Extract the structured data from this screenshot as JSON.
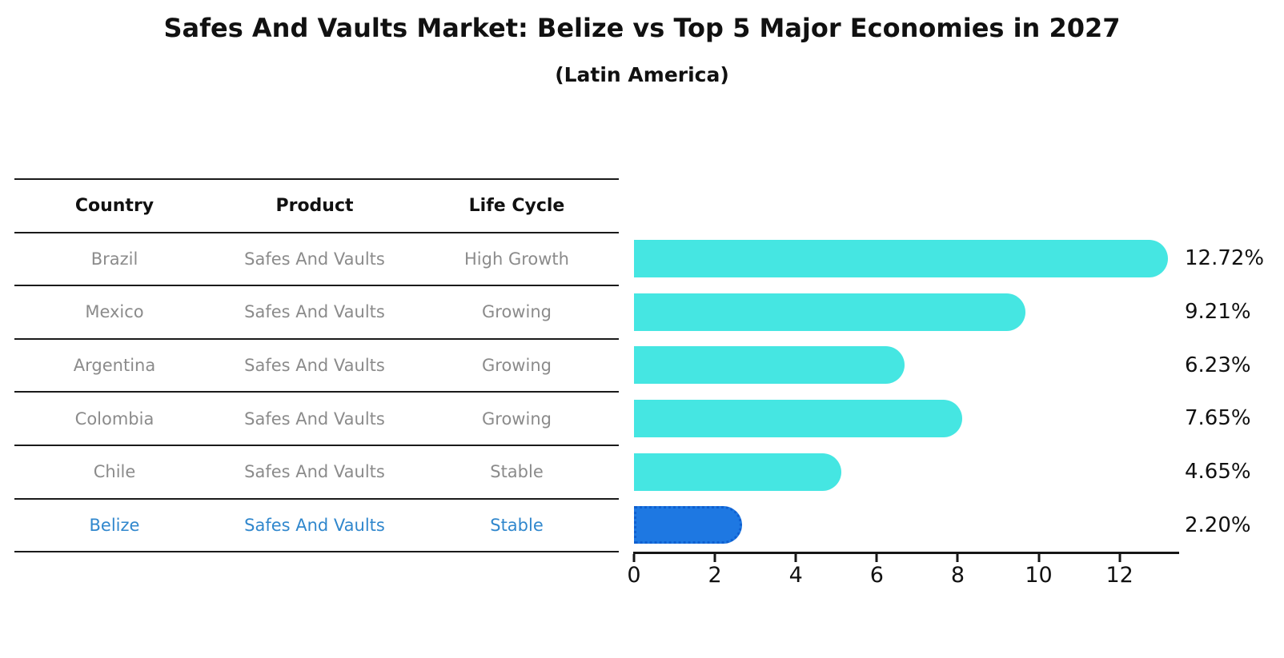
{
  "title": "Safes And Vaults Market: Belize vs Top 5 Major Economies in 2027",
  "subtitle": "(Latin America)",
  "table": {
    "headers": [
      "Country",
      "Product",
      "Life Cycle"
    ],
    "rows": [
      {
        "country": "Brazil",
        "product": "Safes And Vaults",
        "life_cycle": "High Growth",
        "highlight": false
      },
      {
        "country": "Mexico",
        "product": "Safes And Vaults",
        "life_cycle": "Growing",
        "highlight": false
      },
      {
        "country": "Argentina",
        "product": "Safes And Vaults",
        "life_cycle": "Growing",
        "highlight": false
      },
      {
        "country": "Colombia",
        "product": "Safes And Vaults",
        "life_cycle": "Growing",
        "highlight": false
      },
      {
        "country": "Chile",
        "product": "Safes And Vaults",
        "life_cycle": "Stable",
        "highlight": false
      },
      {
        "country": "Belize",
        "product": "Safes And Vaults",
        "life_cycle": "Stable",
        "highlight": true
      }
    ]
  },
  "chart_data": {
    "type": "bar",
    "orientation": "horizontal",
    "title": "Safes And Vaults Market: Belize vs Top 5 Major Economies in 2027",
    "subtitle": "(Latin America)",
    "categories": [
      "Brazil",
      "Mexico",
      "Argentina",
      "Colombia",
      "Chile",
      "Belize"
    ],
    "values": [
      12.72,
      9.21,
      6.23,
      7.65,
      4.65,
      2.2
    ],
    "value_labels": [
      "12.72%",
      "9.21%",
      "6.23%",
      "7.65%",
      "4.65%",
      "2.20%"
    ],
    "xlabel": "",
    "ylabel": "",
    "x_ticks": [
      0,
      2,
      4,
      6,
      8,
      10,
      12
    ],
    "xlim": [
      0,
      13.47
    ],
    "grid": false,
    "legend": false,
    "highlight_index": 5,
    "bar_color": "#45e6e2",
    "highlight_bar_color": "#1e78e2",
    "highlight_text_color": "#3087cd",
    "bar_cap_style": "rounded-right",
    "highlight_border_style": "dotted"
  },
  "colors": {
    "background": "#ffffff",
    "text": "#111111",
    "muted_text": "#8b8b8b",
    "table_line": "#1a1a1a",
    "axis": "#161616"
  }
}
